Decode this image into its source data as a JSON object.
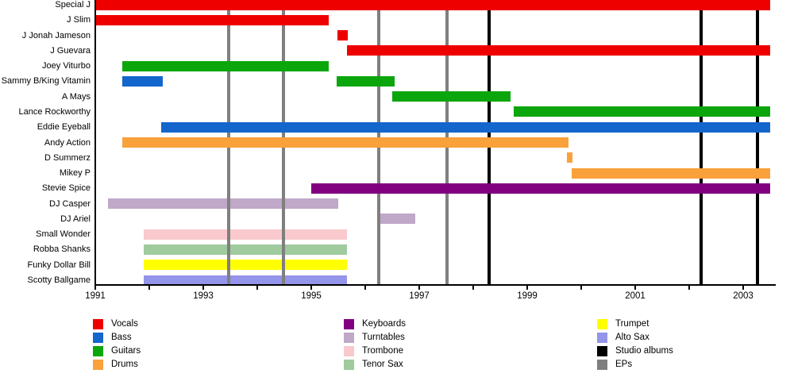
{
  "chart_data": {
    "type": "bar",
    "subtype": "band-members-timeline-gantt",
    "title": "",
    "grid": "vertical-event-lines",
    "legend_position": "bottom",
    "x_axis": {
      "min": 1991,
      "max": 2003.6,
      "tick_years": [
        1991,
        1992,
        1993,
        1994,
        1995,
        1996,
        1997,
        1998,
        1999,
        2000,
        2001,
        2002,
        2003
      ],
      "label_tick_years": [
        1991,
        1993,
        1995,
        1997,
        1999,
        2001,
        2003
      ]
    },
    "members": [
      {
        "name": "Special J",
        "stints": [
          {
            "role": "Vocals",
            "key": "vocals",
            "start": 1991.0,
            "end": 2003.5
          }
        ]
      },
      {
        "name": "J Slim",
        "stints": [
          {
            "role": "Vocals",
            "key": "vocals",
            "start": 1991.0,
            "end": 1995.32
          }
        ]
      },
      {
        "name": "J Jonah Jameson",
        "stints": [
          {
            "role": "Vocals",
            "key": "vocals",
            "start": 1995.49,
            "end": 1995.68
          }
        ]
      },
      {
        "name": "J Guevara",
        "stints": [
          {
            "role": "Vocals",
            "key": "vocals",
            "start": 1995.66,
            "end": 2003.5
          }
        ]
      },
      {
        "name": "Joey Viturbo",
        "stints": [
          {
            "role": "Guitars",
            "key": "guitars",
            "start": 1991.5,
            "end": 1995.32
          }
        ]
      },
      {
        "name": "Sammy B/King Vitamin",
        "stints": [
          {
            "role": "Bass",
            "key": "bass",
            "start": 1991.5,
            "end": 1992.25
          },
          {
            "role": "Guitars",
            "key": "guitars",
            "start": 1995.47,
            "end": 1996.54
          }
        ]
      },
      {
        "name": "A Mays",
        "stints": [
          {
            "role": "Guitars",
            "key": "guitars",
            "start": 1996.5,
            "end": 1998.69
          }
        ]
      },
      {
        "name": "Lance Rockworthy",
        "stints": [
          {
            "role": "Guitars",
            "key": "guitars",
            "start": 1998.75,
            "end": 2003.5
          }
        ]
      },
      {
        "name": "Eddie Eyeball",
        "stints": [
          {
            "role": "Bass",
            "key": "bass",
            "start": 1992.22,
            "end": 2003.5
          }
        ]
      },
      {
        "name": "Andy Action",
        "stints": [
          {
            "role": "Drums",
            "key": "drums",
            "start": 1991.5,
            "end": 1999.76
          }
        ]
      },
      {
        "name": "D Summerz",
        "stints": [
          {
            "role": "Drums",
            "key": "drums",
            "start": 1999.73,
            "end": 1999.84
          }
        ]
      },
      {
        "name": "Mikey P",
        "stints": [
          {
            "role": "Drums",
            "key": "drums",
            "start": 1999.82,
            "end": 2003.5
          }
        ]
      },
      {
        "name": "Stevie Spice",
        "stints": [
          {
            "role": "Keyboards",
            "key": "keyboards",
            "start": 1995.0,
            "end": 2003.5
          }
        ]
      },
      {
        "name": "DJ Casper",
        "stints": [
          {
            "role": "Turntables",
            "key": "turntables",
            "start": 1991.24,
            "end": 1995.5
          }
        ]
      },
      {
        "name": "DJ Ariel",
        "stints": [
          {
            "role": "Turntables",
            "key": "turntables",
            "start": 1996.25,
            "end": 1996.92
          }
        ]
      },
      {
        "name": "Small Wonder",
        "stints": [
          {
            "role": "Trombone",
            "key": "trombone",
            "start": 1991.9,
            "end": 1995.66
          }
        ]
      },
      {
        "name": "Robba Shanks",
        "stints": [
          {
            "role": "Tenor Sax",
            "key": "tenor_sax",
            "start": 1991.9,
            "end": 1995.66
          }
        ]
      },
      {
        "name": "Funky Dollar Bill",
        "stints": [
          {
            "role": "Trumpet",
            "key": "trumpet",
            "start": 1991.9,
            "end": 1995.66
          }
        ]
      },
      {
        "name": "Scotty Ballgame",
        "stints": [
          {
            "role": "Alto Sax",
            "key": "alto_sax",
            "start": 1991.9,
            "end": 1995.66
          }
        ]
      }
    ],
    "events": [
      {
        "label": "EPs",
        "key": "eps",
        "years": [
          1993.47,
          1994.49,
          1996.25,
          1997.51
        ]
      },
      {
        "label": "Studio albums",
        "key": "studio_albums",
        "years": [
          1998.29,
          2002.22,
          2003.26
        ]
      }
    ],
    "colors": {
      "vocals": "#EE0000",
      "bass": "#1266CC",
      "guitars": "#0BA60B",
      "drums": "#F9A13A",
      "keyboards": "#800080",
      "turntables": "#C0A8C8",
      "trombone": "#F9C9CD",
      "tenor_sax": "#9FCB9F",
      "trumpet": "#FFFF00",
      "alto_sax": "#9494EA",
      "studio_albums": "#000000",
      "eps": "#7F7F7F",
      "axis": "#000000"
    },
    "light_keys": [
      "turntables",
      "trombone",
      "tenor_sax",
      "trumpet",
      "alto_sax"
    ],
    "legend_columns": [
      [
        {
          "key": "vocals",
          "label": "Vocals"
        },
        {
          "key": "bass",
          "label": "Bass"
        },
        {
          "key": "guitars",
          "label": "Guitars"
        },
        {
          "key": "drums",
          "label": "Drums"
        }
      ],
      [
        {
          "key": "keyboards",
          "label": "Keyboards"
        },
        {
          "key": "turntables",
          "label": "Turntables"
        },
        {
          "key": "trombone",
          "label": "Trombone"
        },
        {
          "key": "tenor_sax",
          "label": "Tenor Sax"
        }
      ],
      [
        {
          "key": "trumpet",
          "label": "Trumpet"
        },
        {
          "key": "alto_sax",
          "label": "Alto Sax"
        },
        {
          "key": "studio_albums",
          "label": "Studio albums"
        },
        {
          "key": "eps",
          "label": "EPs"
        }
      ]
    ]
  }
}
